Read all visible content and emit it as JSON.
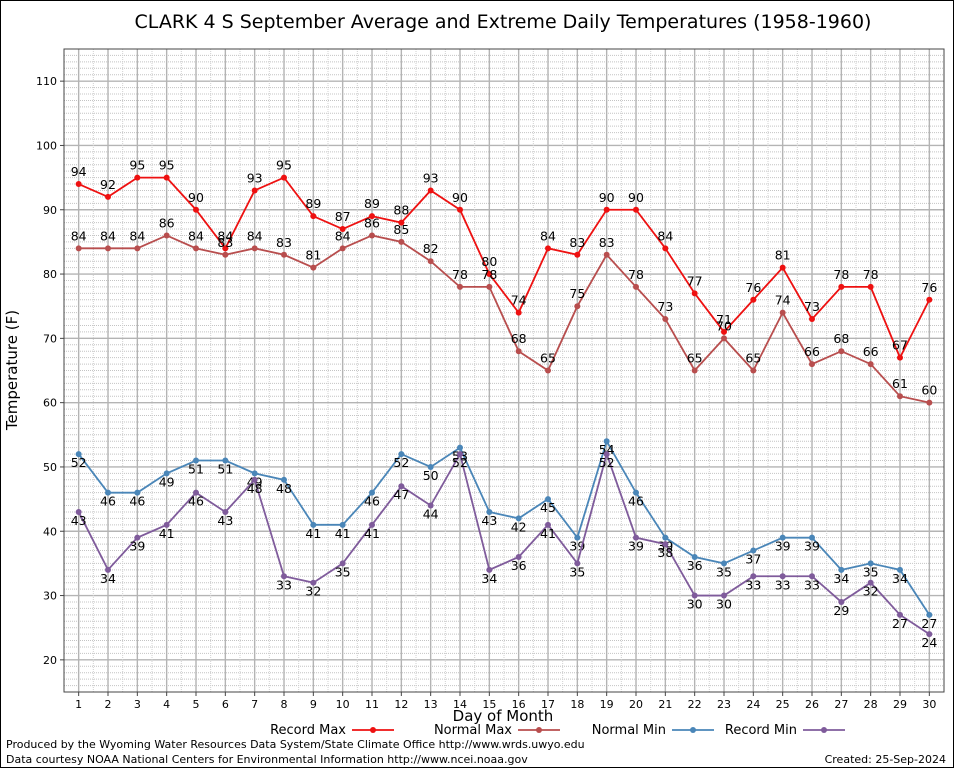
{
  "chart_data": {
    "type": "line",
    "title": "CLARK 4 S September Average and Extreme Daily Temperatures (1958-1960)",
    "xlabel": "Day of Month",
    "ylabel": "Temperature (F)",
    "xlim": [
      0.5,
      30.5
    ],
    "ylim": [
      15,
      115
    ],
    "yticks": [
      20,
      30,
      40,
      50,
      60,
      70,
      80,
      90,
      100,
      110
    ],
    "x": [
      1,
      2,
      3,
      4,
      5,
      6,
      7,
      8,
      9,
      10,
      11,
      12,
      13,
      14,
      15,
      16,
      17,
      18,
      19,
      20,
      21,
      22,
      23,
      24,
      25,
      26,
      27,
      28,
      29,
      30
    ],
    "grid": true,
    "legend_position": "bottom",
    "series": [
      {
        "name": "Record Max",
        "color": "#ee1111",
        "values": [
          94,
          92,
          95,
          95,
          90,
          84,
          93,
          95,
          89,
          87,
          89,
          88,
          93,
          90,
          80,
          74,
          84,
          83,
          90,
          90,
          84,
          77,
          71,
          76,
          81,
          73,
          78,
          78,
          67,
          76
        ]
      },
      {
        "name": "Normal Max",
        "color": "#b84e4e",
        "values": [
          84,
          84,
          84,
          86,
          84,
          83,
          84,
          83,
          81,
          84,
          86,
          85,
          82,
          78,
          78,
          68,
          65,
          75,
          83,
          78,
          73,
          65,
          70,
          65,
          74,
          66,
          68,
          66,
          61,
          60
        ]
      },
      {
        "name": "Normal Min",
        "color": "#4a86b8",
        "values": [
          52,
          46,
          46,
          49,
          51,
          51,
          49,
          48,
          41,
          41,
          46,
          52,
          50,
          53,
          43,
          42,
          45,
          39,
          54,
          46,
          39,
          36,
          35,
          37,
          39,
          39,
          34,
          35,
          34,
          27
        ]
      },
      {
        "name": "Record Min",
        "color": "#7f5b9b",
        "values": [
          43,
          34,
          39,
          41,
          46,
          43,
          48,
          33,
          32,
          35,
          41,
          47,
          44,
          52,
          34,
          36,
          41,
          35,
          52,
          39,
          38,
          30,
          30,
          33,
          33,
          33,
          29,
          32,
          27,
          24
        ]
      }
    ]
  },
  "footer": {
    "produced_by": "Produced by the Wyoming Water Resources Data System/State Climate Office http://www.wrds.uwyo.edu",
    "data_source": "Data courtesy NOAA National Centers for Environmental Information http://www.ncei.noaa.gov",
    "created": "Created:  25-Sep-2024"
  }
}
